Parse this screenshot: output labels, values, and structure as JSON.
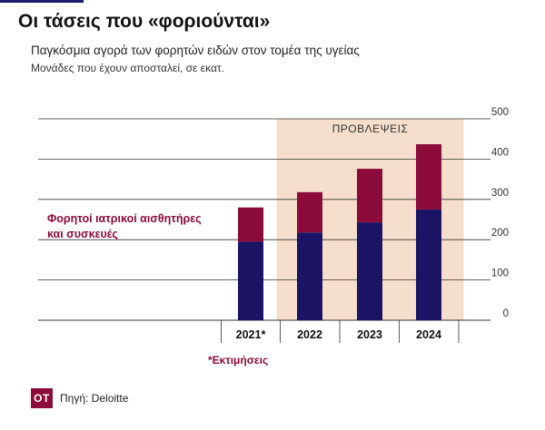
{
  "header": {
    "title": "Οι τάσεις που «φοριούνται»",
    "subtitle": "Παγκόσμια αγορά των φορητών ειδών στον τομέα της υγείας",
    "units": "Μονάδες που έχουν αποσταλεί, σε εκατ."
  },
  "legend": {
    "label": "Φορητοί ιατρικοί αισθητήρες και συσκευές"
  },
  "footer": {
    "note": "*Εκτιμήσεις",
    "logo_text": "ΟΤ",
    "source": "Πηγή: Deloitte"
  },
  "colors": {
    "base": "#1b1464",
    "top": "#8b0c3a",
    "forecast_band": "#f5dfcc",
    "gridline": "#333333",
    "text": "#222222"
  },
  "chart_data": {
    "type": "bar",
    "stacked": true,
    "categories": [
      "2021*",
      "2022",
      "2023",
      "2024"
    ],
    "series": [
      {
        "name": "",
        "values": [
          195,
          218,
          243,
          275
        ]
      },
      {
        "name": "Φορητοί ιατρικοί αισθητήρες και συσκευές",
        "values": [
          85,
          100,
          133,
          162
        ]
      }
    ],
    "totals": [
      280,
      318,
      376,
      437
    ],
    "ylim": [
      0,
      500
    ],
    "yticks": [
      0,
      100,
      200,
      300,
      400,
      500
    ],
    "y_axis_position": "right",
    "grid": true,
    "forecast_band": {
      "label": "ΠΡΟΒΛΕΨΕΙΣ",
      "from_category": "2022",
      "to_category": "2024"
    }
  }
}
